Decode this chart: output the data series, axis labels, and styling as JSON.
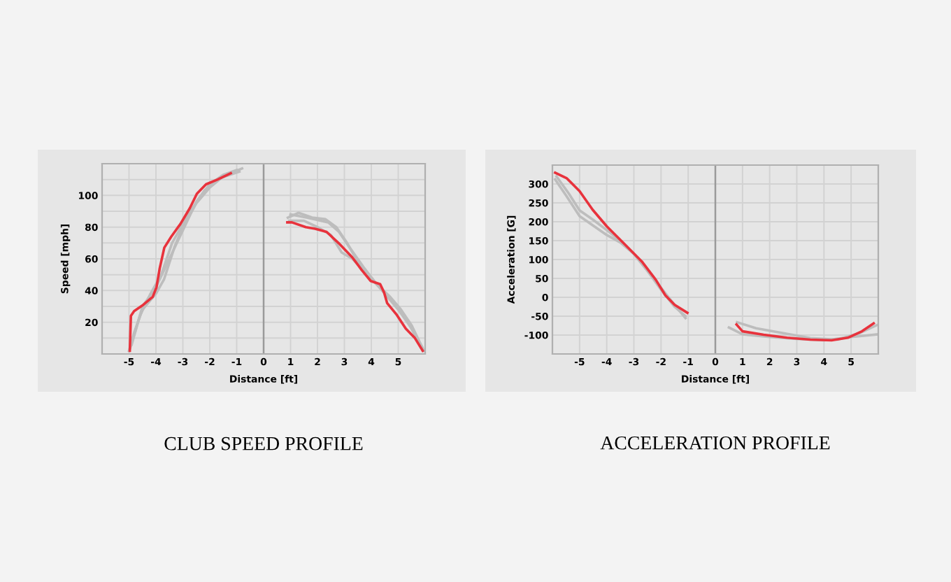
{
  "chart_data": [
    {
      "type": "line",
      "title": "CLUB SPEED PROFILE",
      "xlabel": "Distance [ft]",
      "ylabel": "Speed [mph]",
      "xlim": [
        -6,
        6
      ],
      "ylim": [
        0,
        120
      ],
      "xticks": [
        -5,
        -4,
        -3,
        -2,
        -1,
        0,
        1,
        2,
        3,
        4,
        5
      ],
      "yticks": [
        {
          "value": 10,
          "label": null
        },
        20,
        {
          "value": 30,
          "label": null
        },
        40,
        {
          "value": 50,
          "label": null
        },
        60,
        {
          "value": 70,
          "label": null
        },
        80,
        {
          "value": 90,
          "label": null
        },
        100,
        {
          "value": 110,
          "label": null
        }
      ],
      "grid": true,
      "ref_lines": [
        {
          "axis": "x",
          "value": 0,
          "color": "#9a9a9a"
        }
      ],
      "series": [
        {
          "color": "#bdbdbd",
          "x": [
            -5,
            -4.8,
            -4.5,
            -4,
            -3.7,
            -3.3,
            -3,
            -2.5,
            -2,
            -1.5,
            -0.8
          ],
          "values": [
            2,
            14,
            28,
            38,
            47,
            68,
            80,
            95,
            105,
            112,
            117
          ]
        },
        {
          "color": "#bdbdbd",
          "x": [
            -4.95,
            -4.6,
            -4.2,
            -3.8,
            -3.4,
            -3,
            -2.6,
            -2.2,
            -1.6,
            -0.9
          ],
          "values": [
            4,
            24,
            38,
            50,
            70,
            82,
            93,
            103,
            111,
            115
          ]
        },
        {
          "color": "#bdbdbd",
          "x": [
            -4.9,
            -4.5,
            -4,
            -3.5,
            -3,
            -2.5,
            -2,
            -1.5,
            -1
          ],
          "values": [
            6,
            30,
            42,
            60,
            78,
            96,
            107,
            113,
            116
          ]
        },
        {
          "color": "#bdbdbd",
          "x": [
            0.9,
            1.3,
            1.8,
            2.3,
            2.7,
            3.1,
            3.5,
            4,
            4.5,
            5,
            5.5,
            5.9
          ],
          "values": [
            86,
            89,
            86,
            85,
            80,
            70,
            58,
            48,
            38,
            28,
            16,
            4
          ]
        },
        {
          "color": "#bdbdbd",
          "x": [
            0.95,
            1.5,
            2,
            2.5,
            2.9,
            3.3,
            3.8,
            4.3,
            4.8,
            5.3,
            5.9
          ],
          "values": [
            84,
            84,
            80,
            75,
            64,
            60,
            51,
            42,
            33,
            22,
            3
          ]
        },
        {
          "color": "#bdbdbd",
          "x": [
            1,
            1.6,
            2.4,
            2.8,
            3.2,
            3.7,
            4.2,
            4.7,
            5.1,
            5.5,
            5.95
          ],
          "values": [
            88,
            86,
            83,
            77,
            67,
            55,
            44,
            36,
            28,
            18,
            2
          ]
        },
        {
          "color": "#e8323c",
          "x": [
            -4.97,
            -4.93,
            -4.81,
            -4.47,
            -4.12,
            -3.98,
            -3.86,
            -3.69,
            -3.43,
            -3.09,
            -2.74,
            -2.48,
            -2.14,
            -1.71,
            -1.22
          ],
          "values": [
            2,
            24,
            27,
            31,
            36,
            42,
            54,
            67,
            74,
            82,
            92,
            101,
            107,
            110,
            114
          ]
        },
        {
          "color": "#e8323c",
          "x": [
            0.88,
            1.05,
            1.57,
            1.91,
            2.34,
            2.78,
            3.29,
            3.64,
            3.98,
            4.33,
            4.47,
            4.59,
            4.93,
            5.28,
            5.62,
            5.91
          ],
          "values": [
            83,
            83,
            80,
            79,
            77,
            70,
            61,
            53,
            46,
            44,
            39,
            32,
            25,
            16,
            10,
            2
          ]
        }
      ]
    },
    {
      "type": "line",
      "title": "ACCELERATION PROFILE",
      "xlabel": "Distance [ft]",
      "ylabel": "Acceleration [G]",
      "xlim": [
        -6,
        6
      ],
      "ylim": [
        -150,
        350
      ],
      "xticks": [
        -5,
        -4,
        -3,
        -2,
        -1,
        0,
        1,
        2,
        3,
        4,
        5
      ],
      "yticks": [
        -100,
        -50,
        0,
        50,
        100,
        150,
        200,
        250,
        300
      ],
      "grid": true,
      "ref_lines": [
        {
          "axis": "x",
          "value": 0,
          "color": "#9a9a9a"
        }
      ],
      "series": [
        {
          "color": "#bdbdbd",
          "x": [
            -5.9,
            -5.5,
            -5,
            -4.5,
            -4,
            -3.5,
            -3,
            -2.5,
            -2,
            -1.5,
            -1.1
          ],
          "values": [
            312,
            270,
            215,
            190,
            165,
            145,
            115,
            70,
            25,
            -20,
            -55
          ]
        },
        {
          "color": "#bdbdbd",
          "x": [
            -5.85,
            -5.4,
            -5,
            -4.5,
            -4,
            -3.5,
            -3,
            -2.5,
            -2,
            -1.5,
            -1.1
          ],
          "values": [
            320,
            275,
            230,
            205,
            178,
            150,
            115,
            70,
            20,
            -25,
            -50
          ]
        },
        {
          "color": "#bdbdbd",
          "x": [
            0.5,
            1,
            2,
            3,
            4,
            5,
            6
          ],
          "values": [
            -80,
            -98,
            -105,
            -110,
            -114,
            -105,
            -98
          ]
        },
        {
          "color": "#bdbdbd",
          "x": [
            0.8,
            1.5,
            2.5,
            3.5,
            4.5,
            5.3,
            6
          ],
          "values": [
            -66,
            -82,
            -95,
            -108,
            -112,
            -95,
            -72
          ]
        },
        {
          "color": "#e8323c",
          "x": [
            -5.9,
            -5.47,
            -5,
            -4.52,
            -4,
            -3.4,
            -2.71,
            -2.19,
            -1.84,
            -1.5,
            -1.03
          ],
          "values": [
            330,
            315,
            281,
            232,
            188,
            145,
            95,
            46,
            5,
            -20,
            -41
          ]
        },
        {
          "color": "#e8323c",
          "x": [
            0.78,
            1,
            1.78,
            2.64,
            3.5,
            4.28,
            4.88,
            5.4,
            5.83
          ],
          "values": [
            -72,
            -90,
            -99,
            -107,
            -112,
            -114,
            -107,
            -90,
            -69
          ]
        }
      ]
    }
  ]
}
